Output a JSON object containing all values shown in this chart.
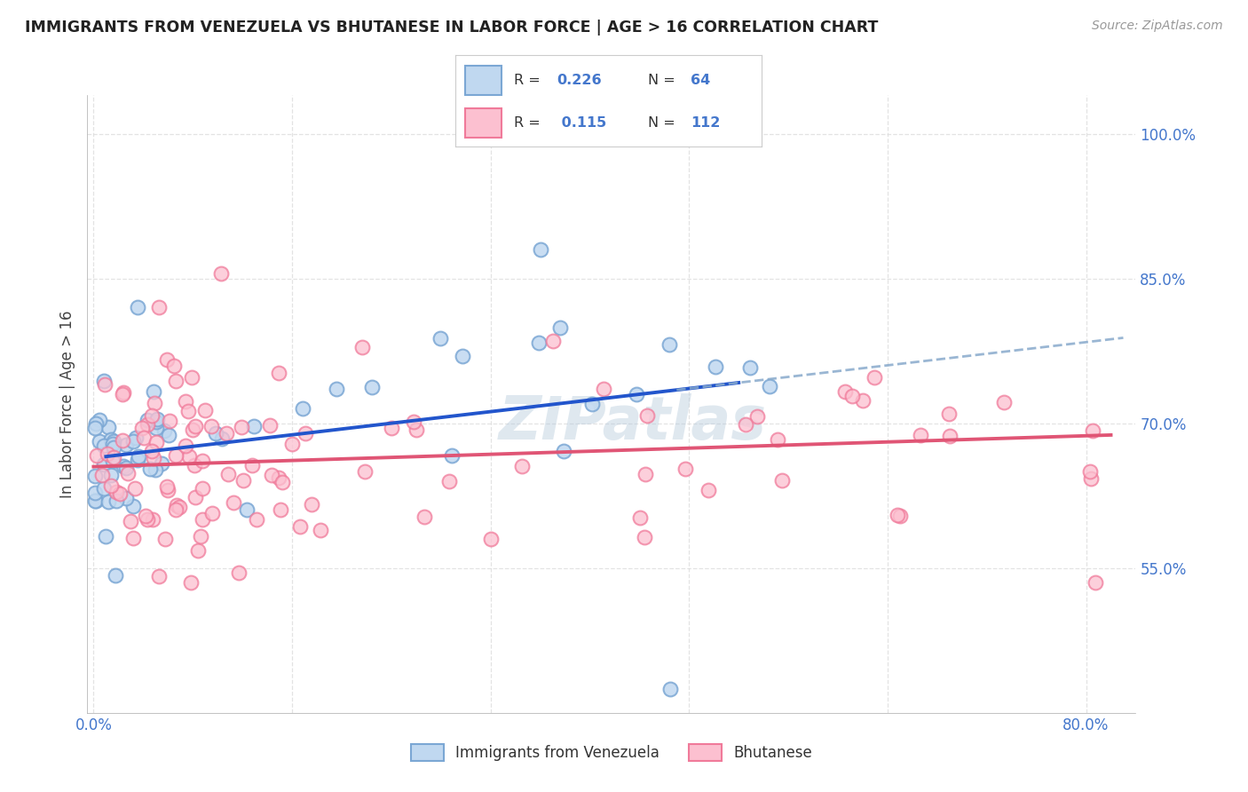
{
  "title": "IMMIGRANTS FROM VENEZUELA VS BHUTANESE IN LABOR FORCE | AGE > 16 CORRELATION CHART",
  "source": "Source: ZipAtlas.com",
  "ylabel": "In Labor Force | Age > 16",
  "color_venezuela": "#7ba7d4",
  "color_bhutanese": "#f07a9a",
  "color_trend_venezuela": "#2255cc",
  "color_trend_bhutanese": "#e05575",
  "color_dashed": "#88aacc",
  "background_color": "#ffffff",
  "grid_color": "#dddddd",
  "title_color": "#222222",
  "axis_color": "#4477cc",
  "watermark": "ZIPatlas",
  "legend_label1": "Immigrants from Venezuela",
  "legend_label2": "Bhutanese",
  "xlim": [
    -0.005,
    0.84
  ],
  "ylim": [
    0.4,
    1.04
  ],
  "x_ticks": [
    0.0,
    0.16,
    0.32,
    0.48,
    0.64,
    0.8
  ],
  "x_tick_labels": [
    "0.0%",
    "",
    "",
    "",
    "",
    "80.0%"
  ],
  "y_ticks": [
    0.55,
    0.7,
    0.85,
    1.0
  ],
  "y_tick_labels": [
    "55.0%",
    "70.0%",
    "85.0%",
    "100.0%"
  ],
  "ven_slope": 0.15,
  "ven_intercept": 0.664,
  "bhu_slope": 0.04,
  "bhu_intercept": 0.655
}
